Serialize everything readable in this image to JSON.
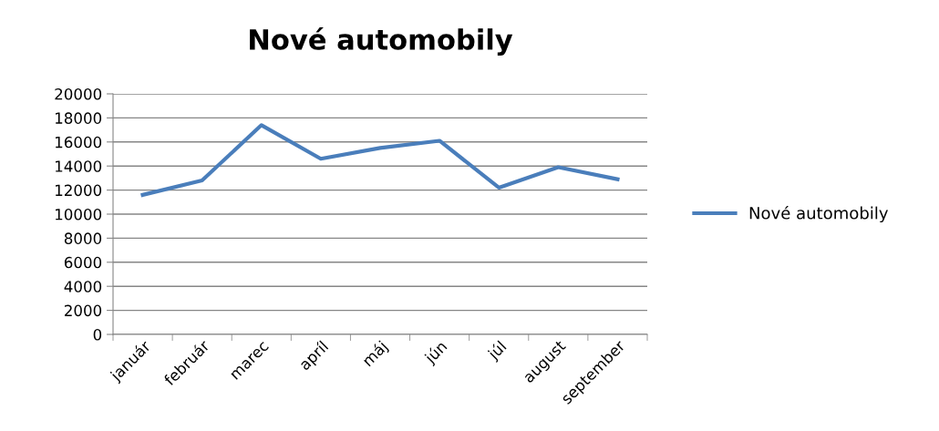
{
  "chart_data": {
    "type": "line",
    "title": "Nové automobily",
    "categories": [
      "január",
      "február",
      "marec",
      "apríl",
      "máj",
      "jún",
      "júl",
      "august",
      "september"
    ],
    "series": [
      {
        "name": "Nové automobily",
        "color": "#4a7ebb",
        "values": [
          11600,
          12800,
          17400,
          14600,
          15500,
          16100,
          12200,
          13900,
          12900
        ]
      }
    ],
    "ylim": [
      0,
      20000
    ],
    "yticks": [
      0,
      2000,
      4000,
      6000,
      8000,
      10000,
      12000,
      14000,
      16000,
      18000,
      20000
    ],
    "grid": "y",
    "legend": "right",
    "marker": "none",
    "line_style": "solid"
  }
}
